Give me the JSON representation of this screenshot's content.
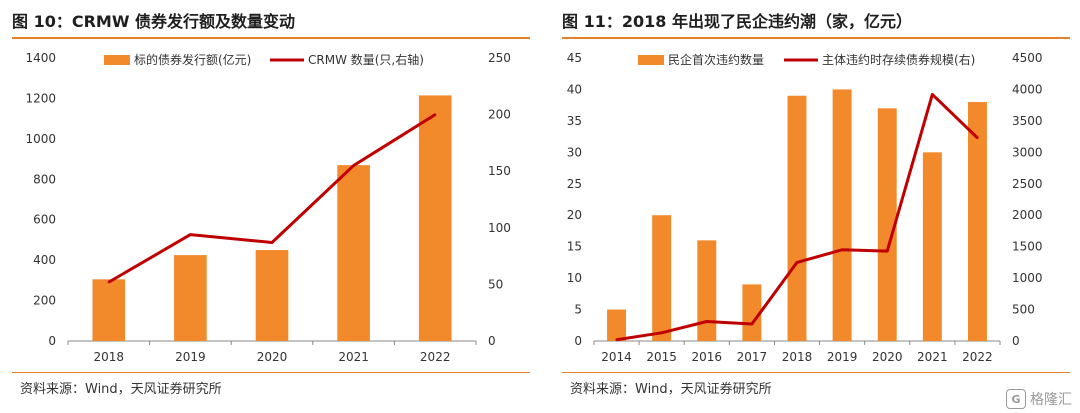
{
  "left": {
    "title": "图 10：CRMW 债券发行额及数量变动",
    "source": "资料来源：Wind，天风证券研究所"
  },
  "right": {
    "title": "图 11：2018 年出现了民企违约潮（家，亿元）",
    "source": "资料来源：Wind，天风证券研究所"
  },
  "watermark": {
    "text": "格隆汇",
    "logo_text": "G"
  },
  "colors": {
    "bar": "#f28a2b",
    "line": "#c00000",
    "accent": "#e8802a"
  },
  "chart_data": [
    {
      "type": "bar",
      "categories": [
        "2018",
        "2019",
        "2020",
        "2021",
        "2022"
      ],
      "series": [
        {
          "name": "标的债券发行额(亿元)",
          "type": "bar",
          "axis": "left",
          "values": [
            305,
            425,
            450,
            870,
            1215
          ]
        },
        {
          "name": "CRMW 数量(只,右轴)",
          "type": "line",
          "axis": "right",
          "values": [
            52,
            94,
            87,
            155,
            200
          ]
        }
      ],
      "ylim_left": [
        0,
        1400
      ],
      "yticks_left": [
        0,
        200,
        400,
        600,
        800,
        1000,
        1200,
        1400
      ],
      "ylim_right": [
        0,
        250
      ],
      "yticks_right": [
        0,
        50,
        100,
        150,
        200,
        250
      ],
      "legend": "top-center",
      "grid": false
    },
    {
      "type": "bar",
      "categories": [
        "2014",
        "2015",
        "2016",
        "2017",
        "2018",
        "2019",
        "2020",
        "2021",
        "2022"
      ],
      "series": [
        {
          "name": "民企首次违约数量",
          "type": "bar",
          "axis": "left",
          "values": [
            5,
            20,
            16,
            9,
            39,
            40,
            37,
            30,
            38
          ]
        },
        {
          "name": "主体违约时存续债券规模(右)",
          "type": "line",
          "axis": "right",
          "values": [
            20,
            130,
            310,
            270,
            1250,
            1450,
            1430,
            3920,
            3230
          ]
        }
      ],
      "ylim_left": [
        0,
        45
      ],
      "yticks_left": [
        0,
        5,
        10,
        15,
        20,
        25,
        30,
        35,
        40,
        45
      ],
      "ylim_right": [
        0,
        4500
      ],
      "yticks_right": [
        0,
        500,
        1000,
        1500,
        2000,
        2500,
        3000,
        3500,
        4000,
        4500
      ],
      "legend": "top-center",
      "grid": false
    }
  ]
}
